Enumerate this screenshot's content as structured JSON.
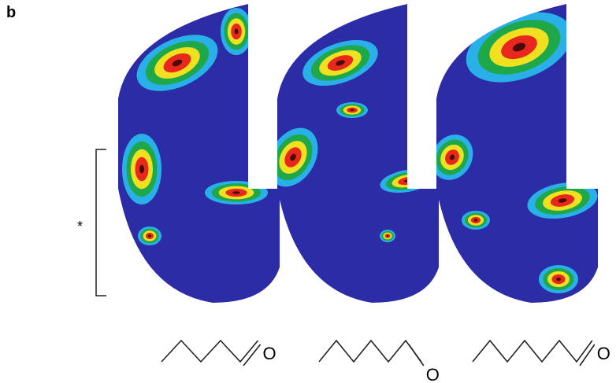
{
  "panel_label": "b",
  "bracket_label": "*",
  "structures": [
    {
      "atom": "O"
    },
    {
      "atom": "O"
    },
    {
      "atom": "O"
    }
  ]
}
